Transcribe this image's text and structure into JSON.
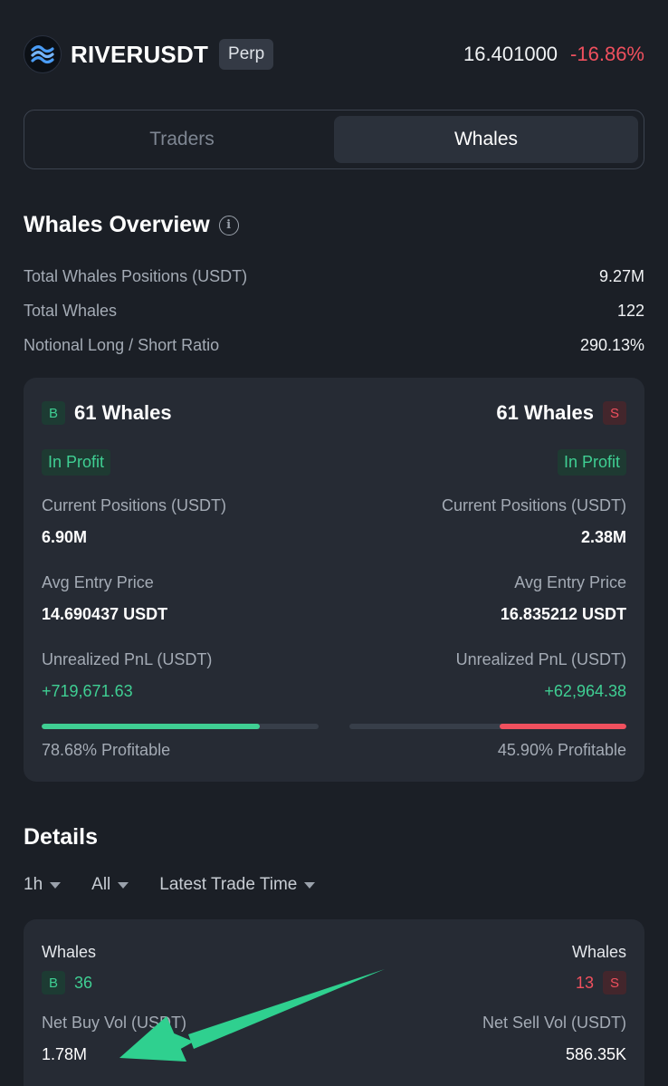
{
  "header": {
    "symbol": "RIVERUSDT",
    "market_type": "Perp",
    "price": "16.401000",
    "change": "-16.86%",
    "logo_icon": "river-wave-logo-icon"
  },
  "tabs": [
    {
      "label": "Traders",
      "active": false
    },
    {
      "label": "Whales",
      "active": true
    }
  ],
  "overview": {
    "title": "Whales Overview",
    "info_icon": "info-icon",
    "stats": [
      {
        "label": "Total Whales Positions (USDT)",
        "value": "9.27M"
      },
      {
        "label": "Total Whales",
        "value": "122"
      },
      {
        "label": "Notional Long / Short Ratio",
        "value": "290.13%"
      }
    ]
  },
  "long_short": {
    "long": {
      "side_badge": "B",
      "whales": "61 Whales",
      "status": "In Profit",
      "positions_label": "Current Positions (USDT)",
      "positions_value": "6.90M",
      "entry_label": "Avg Entry Price",
      "entry_value": "14.690437 USDT",
      "pnl_label": "Unrealized PnL (USDT)",
      "pnl_value": "+719,671.63",
      "profitable_pct": 78.68,
      "profitable_text": "78.68% Profitable"
    },
    "short": {
      "side_badge": "S",
      "whales": "61 Whales",
      "status": "In Profit",
      "positions_label": "Current Positions (USDT)",
      "positions_value": "2.38M",
      "entry_label": "Avg Entry Price",
      "entry_value": "16.835212 USDT",
      "pnl_label": "Unrealized PnL (USDT)",
      "pnl_value": "+62,964.38",
      "profitable_pct": 45.9,
      "profitable_text": "45.90% Profitable"
    }
  },
  "details": {
    "title": "Details",
    "filters": [
      "1h",
      "All",
      "Latest Trade Time"
    ],
    "buy": {
      "whales_label": "Whales",
      "badge": "B",
      "count": "36",
      "vol_label": "Net Buy Vol (USDT)",
      "vol_value": "1.78M"
    },
    "sell": {
      "whales_label": "Whales",
      "badge": "S",
      "count": "13",
      "vol_label": "Net Sell Vol (USDT)",
      "vol_value": "586.35K"
    }
  },
  "colors": {
    "background": "#1b1f26",
    "card": "#262b34",
    "green": "#3fcf93",
    "red": "#f0505e",
    "annotation_arrow": "#2fd08f"
  }
}
